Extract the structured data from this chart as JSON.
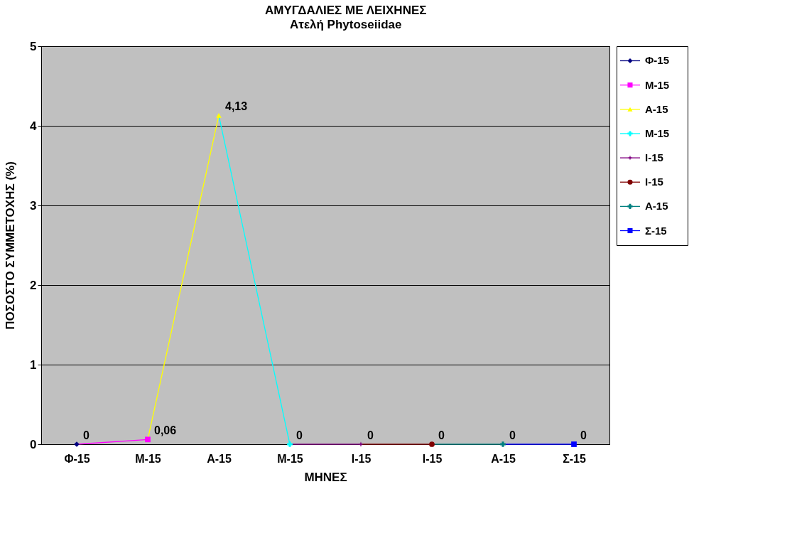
{
  "chart_data": {
    "type": "line",
    "title": "ΑΜΥΓΔΑΛΙΕΣ ΜΕ ΛΕΙΧΗΝΕΣ",
    "subtitle": "Ατελή Phytoseiidae",
    "xlabel": "ΜΗΝΕΣ",
    "ylabel": "ΠΟΣΟΣΤΟ ΣΥΜΜΕΤΟΧΗΣ (%)",
    "categories": [
      "Φ-15",
      "Μ-15",
      "Α-15",
      "Μ-15",
      "Ι-15",
      "Ι-15",
      "Α-15",
      "Σ-15"
    ],
    "series": [
      {
        "name": "Φ-15",
        "color": "#000080",
        "marker": "diamond",
        "values": [
          0,
          null,
          null,
          null,
          null,
          null,
          null,
          null
        ],
        "value_labels": [
          "0",
          null,
          null,
          null,
          null,
          null,
          null,
          null
        ]
      },
      {
        "name": "Μ-15",
        "color": "#ff00ff",
        "marker": "square",
        "values": [
          null,
          0.06,
          null,
          null,
          null,
          null,
          null,
          null
        ],
        "value_labels": [
          null,
          "0,06",
          null,
          null,
          null,
          null,
          null,
          null
        ]
      },
      {
        "name": "Α-15",
        "color": "#ffff00",
        "marker": "triangle",
        "values": [
          null,
          null,
          4.13,
          null,
          null,
          null,
          null,
          null
        ],
        "value_labels": [
          null,
          null,
          "4,13",
          null,
          null,
          null,
          null,
          null
        ]
      },
      {
        "name": "Μ-15",
        "color": "#00ffff",
        "marker": "cross",
        "values": [
          null,
          null,
          null,
          0,
          null,
          null,
          null,
          null
        ],
        "value_labels": [
          null,
          null,
          null,
          "0",
          null,
          null,
          null,
          null
        ]
      },
      {
        "name": "Ι-15",
        "color": "#800080",
        "marker": "star",
        "values": [
          null,
          null,
          null,
          null,
          0,
          null,
          null,
          null
        ],
        "value_labels": [
          null,
          null,
          null,
          null,
          "0",
          null,
          null,
          null
        ]
      },
      {
        "name": "Ι-15",
        "color": "#800000",
        "marker": "circle",
        "values": [
          null,
          null,
          null,
          null,
          null,
          0,
          null,
          null
        ],
        "value_labels": [
          null,
          null,
          null,
          null,
          null,
          "0",
          null,
          null
        ]
      },
      {
        "name": "Α-15",
        "color": "#008080",
        "marker": "cross",
        "values": [
          null,
          null,
          null,
          null,
          null,
          null,
          0,
          null
        ],
        "value_labels": [
          null,
          null,
          null,
          null,
          null,
          null,
          "0",
          null
        ]
      },
      {
        "name": "Σ-15",
        "color": "#0000ff",
        "marker": "square",
        "values": [
          null,
          null,
          null,
          null,
          null,
          null,
          null,
          0
        ],
        "value_labels": [
          null,
          null,
          null,
          null,
          null,
          null,
          null,
          "0"
        ]
      }
    ],
    "ylim": [
      0,
      5
    ],
    "yticks": [
      0,
      1,
      2,
      3,
      4,
      5
    ],
    "grid": "y",
    "legend": "right"
  }
}
